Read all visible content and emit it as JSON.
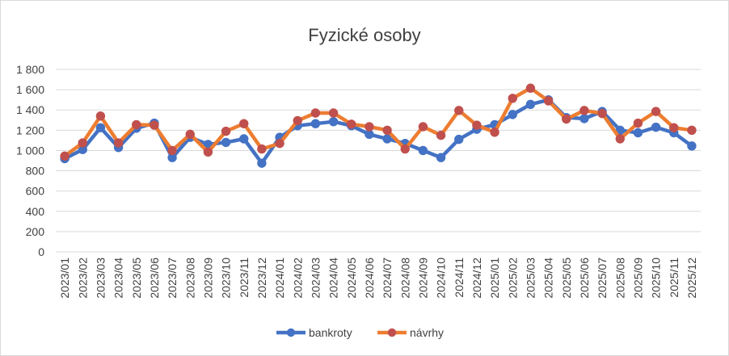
{
  "chart_data": {
    "type": "line",
    "title": "Fyzické osoby",
    "xlabel": "",
    "ylabel": "",
    "ylim": [
      0,
      1800
    ],
    "yticks": [
      0,
      200,
      400,
      600,
      800,
      1000,
      1200,
      1400,
      1600,
      1800
    ],
    "ytick_labels": [
      "0",
      "200",
      "400",
      "600",
      "800",
      "1 000",
      "1 200",
      "1 400",
      "1 600",
      "1 800"
    ],
    "grid": true,
    "legend_position": "bottom",
    "categories": [
      "2023/01",
      "2023/02",
      "2023/03",
      "2023/04",
      "2023/05",
      "2023/06",
      "2023/07",
      "2023/08",
      "2023/09",
      "2023/10",
      "2023/11",
      "2023/12",
      "2024/01",
      "2024/02",
      "2024/03",
      "2024/04",
      "2024/05",
      "2024/06",
      "2024/07",
      "2024/08",
      "2024/09",
      "2024/10",
      "2024/11",
      "2024/12",
      "2025/01",
      "2025/02",
      "2025/03",
      "2025/04",
      "2025/05",
      "2025/06",
      "2025/07",
      "2025/08",
      "2025/09",
      "2025/10",
      "2025/11",
      "2025/12"
    ],
    "series": [
      {
        "name": "bankroty",
        "color": "#4472c4",
        "values": [
          920,
          1010,
          1225,
          1030,
          1220,
          1270,
          930,
          1130,
          1060,
          1080,
          1115,
          875,
          1130,
          1245,
          1265,
          1285,
          1245,
          1160,
          1115,
          1070,
          1000,
          930,
          1110,
          1210,
          1255,
          1355,
          1455,
          1500,
          1325,
          1315,
          1385,
          1200,
          1175,
          1230,
          1175,
          1045
        ]
      },
      {
        "name": "návrhy",
        "color": "#ed7d31",
        "markerColor": "#c0504d",
        "values": [
          945,
          1075,
          1340,
          1075,
          1255,
          1250,
          1000,
          1160,
          985,
          1190,
          1265,
          1015,
          1070,
          1295,
          1370,
          1370,
          1260,
          1235,
          1200,
          1015,
          1235,
          1150,
          1395,
          1250,
          1180,
          1515,
          1615,
          1490,
          1310,
          1395,
          1365,
          1115,
          1270,
          1385,
          1225,
          1200
        ]
      }
    ]
  }
}
